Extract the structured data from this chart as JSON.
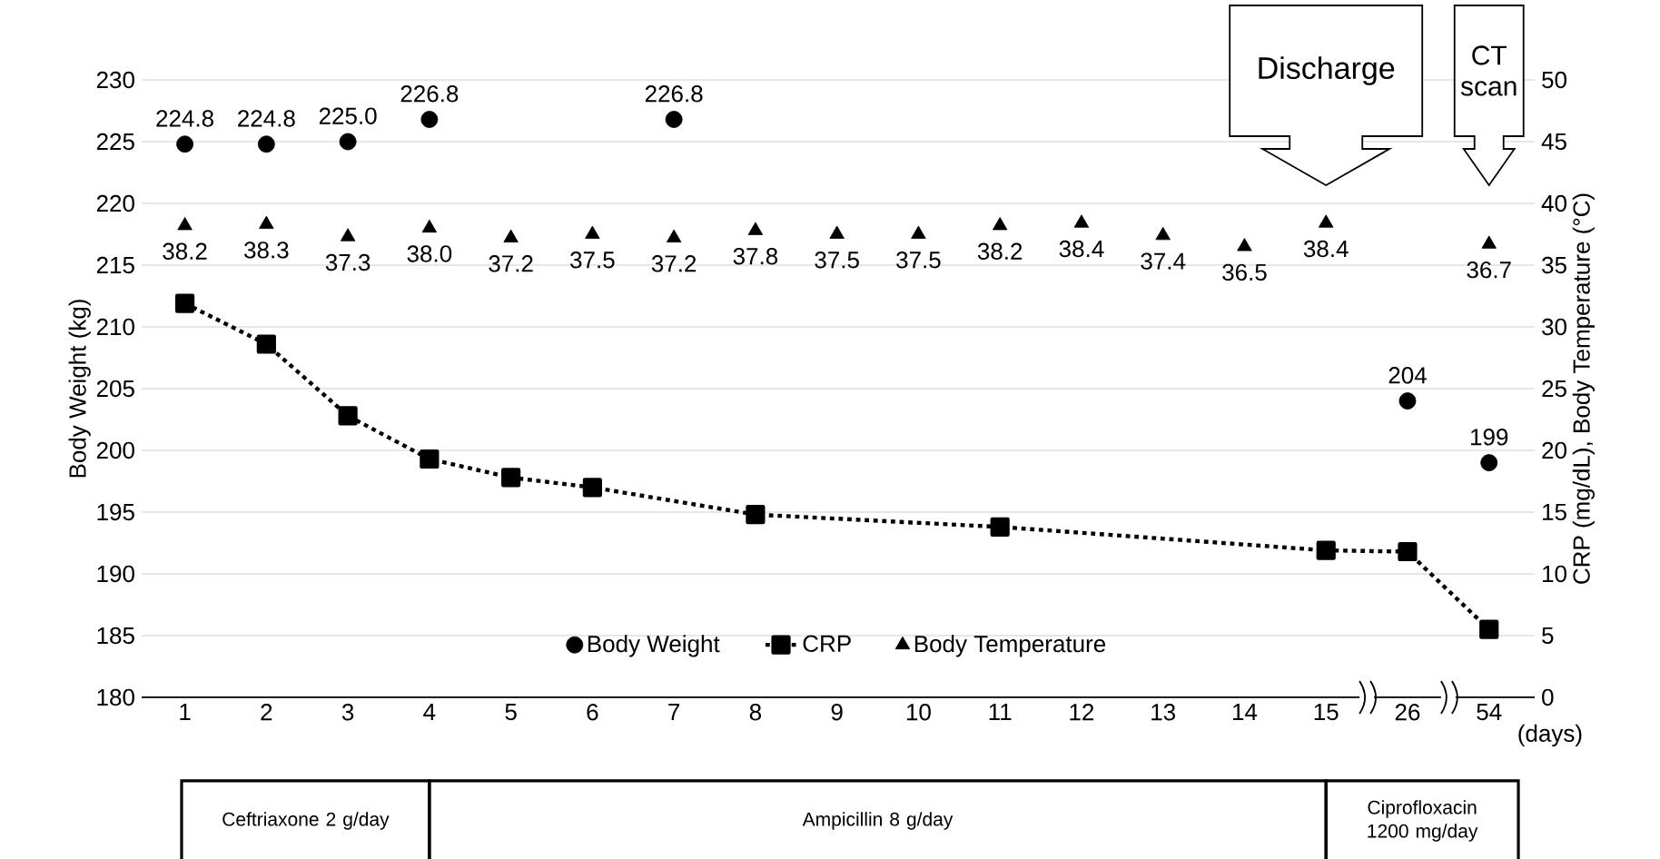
{
  "chart_data": {
    "type": "scatter",
    "categories": [
      "1",
      "2",
      "3",
      "4",
      "5",
      "6",
      "7",
      "8",
      "9",
      "10",
      "11",
      "12",
      "13",
      "14",
      "15",
      "26",
      "54"
    ],
    "xlabel": "(days)",
    "ylabel": "Body Weight (kg)",
    "y2label": "CRP (mg/dL), Body Temperature (°C)",
    "ylim": [
      180,
      230
    ],
    "yticks": [
      180,
      185,
      190,
      195,
      200,
      205,
      210,
      215,
      220,
      225,
      230
    ],
    "y2lim": [
      0,
      50
    ],
    "y2ticks": [
      0,
      5,
      10,
      15,
      20,
      25,
      30,
      35,
      40,
      45,
      50
    ],
    "grid": "y",
    "legend": "bottom",
    "series": [
      {
        "name": "Body Weight",
        "color": "#000000",
        "marker": "circle",
        "values": [
          224.8,
          224.8,
          225.0,
          226.8,
          null,
          null,
          226.8,
          null,
          null,
          null,
          null,
          null,
          null,
          null,
          null,
          204,
          199
        ],
        "value_labels": [
          "224.8",
          "224.8",
          "225.0",
          "226.8",
          null,
          null,
          "226.8",
          null,
          null,
          null,
          null,
          null,
          null,
          null,
          null,
          "204",
          "199"
        ]
      },
      {
        "name": "CRP",
        "type": "line",
        "axis": "y2",
        "color": "#000000",
        "marker": "square",
        "line_style": "dotted",
        "values": [
          31.9,
          28.6,
          22.8,
          19.3,
          17.8,
          17.0,
          null,
          14.8,
          null,
          null,
          13.8,
          null,
          null,
          null,
          11.9,
          11.8,
          5.5
        ]
      },
      {
        "name": "Body Temperature",
        "axis": "y2",
        "color": "#000000",
        "marker": "triangle",
        "values": [
          38.2,
          38.3,
          37.3,
          38.0,
          37.2,
          37.5,
          37.2,
          37.8,
          37.5,
          37.5,
          38.2,
          38.4,
          37.4,
          36.5,
          38.4,
          null,
          36.7
        ],
        "value_labels": [
          "38.2",
          "38.3",
          "37.3",
          "38.0",
          "37.2",
          "37.5",
          "37.2",
          "37.8",
          "37.5",
          "37.5",
          "38.2",
          "38.4",
          "37.4",
          "36.5",
          "38.4",
          null,
          "36.7"
        ]
      }
    ],
    "annotations": [
      "Discharge",
      "CT scan",
      "Ceftriaxone 2 g/day",
      "Ampicillin 8 g/day",
      "Ciprofloxacin 1200 mg/day"
    ]
  }
}
